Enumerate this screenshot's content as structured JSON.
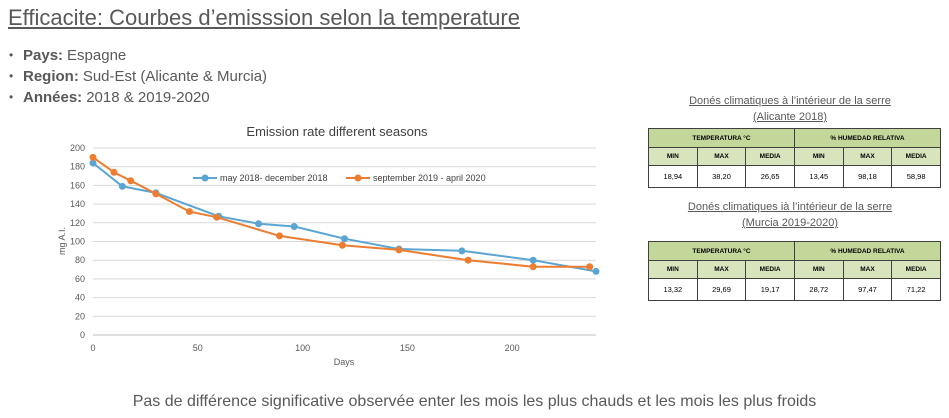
{
  "slide": {
    "title": "Efficacite: Courbes d’emisssion selon la temperature",
    "conclusion": "Pas de différence significative observée enter les mois les plus chauds et les mois les plus froids"
  },
  "facts": [
    {
      "label": "Pays:",
      "value": "Espagne"
    },
    {
      "label": "Region:",
      "value": "Sud-Est (Alicante & Murcia)"
    },
    {
      "label": "Années:",
      "value": "2018 & 2019-2020"
    }
  ],
  "chart_data": {
    "type": "line",
    "title": "Emission rate different seasons",
    "xlabel": "Days",
    "ylabel": "mg A.I.",
    "xlim": [
      0,
      240
    ],
    "ylim": [
      0,
      200
    ],
    "xticks": [
      0,
      50,
      100,
      150,
      200
    ],
    "yticks": [
      0,
      20,
      40,
      60,
      80,
      100,
      120,
      140,
      160,
      180,
      200
    ],
    "grid": true,
    "legend": "inside-top",
    "series": [
      {
        "name": "may 2018- december 2018",
        "color": "#5AA5D1",
        "x": [
          0,
          14,
          30,
          60,
          79,
          96,
          120,
          146,
          176,
          210,
          240
        ],
        "y": [
          184,
          159,
          152,
          127,
          119,
          116,
          103,
          92,
          90,
          80,
          68
        ]
      },
      {
        "name": "september 2019 - april 2020",
        "color": "#ED7D31",
        "x": [
          0,
          10,
          18,
          30,
          46,
          59,
          89,
          119,
          146,
          179,
          210,
          237
        ],
        "y": [
          190,
          174,
          165,
          151,
          132,
          126,
          106,
          96,
          91,
          80,
          73,
          73
        ]
      }
    ]
  },
  "climate_tables": [
    {
      "heading": [
        "Donés climatiques à l’intérieur de la serre",
        "(Alicante 2018)"
      ],
      "groups": [
        "TEMPERATURA °C",
        "% HUMEDAD RELATIVA"
      ],
      "columns": [
        "MIN",
        "MAX",
        "MEDIA",
        "MIN",
        "MAX",
        "MEDIA"
      ],
      "values": [
        "18,94",
        "38,20",
        "26,65",
        "13,45",
        "98,18",
        "58,98"
      ]
    },
    {
      "heading": [
        "Donés climatiques ià l’intérieur de la serre",
        "(Murcia 2019-2020)"
      ],
      "groups": [
        "TEMPERATURA °C",
        "% HUMEDAD RELATIVA"
      ],
      "columns": [
        "MIN",
        "MAX",
        "MEDIA",
        "MIN",
        "MAX",
        "MEDIA"
      ],
      "values": [
        "13,32",
        "29,69",
        "19,17",
        "28,72",
        "97,47",
        "71,22"
      ]
    }
  ],
  "colors": {
    "text": "#595959",
    "table_group_header_bg": "#C4D79B",
    "table_column_header_bg": "#D8E4BC"
  }
}
